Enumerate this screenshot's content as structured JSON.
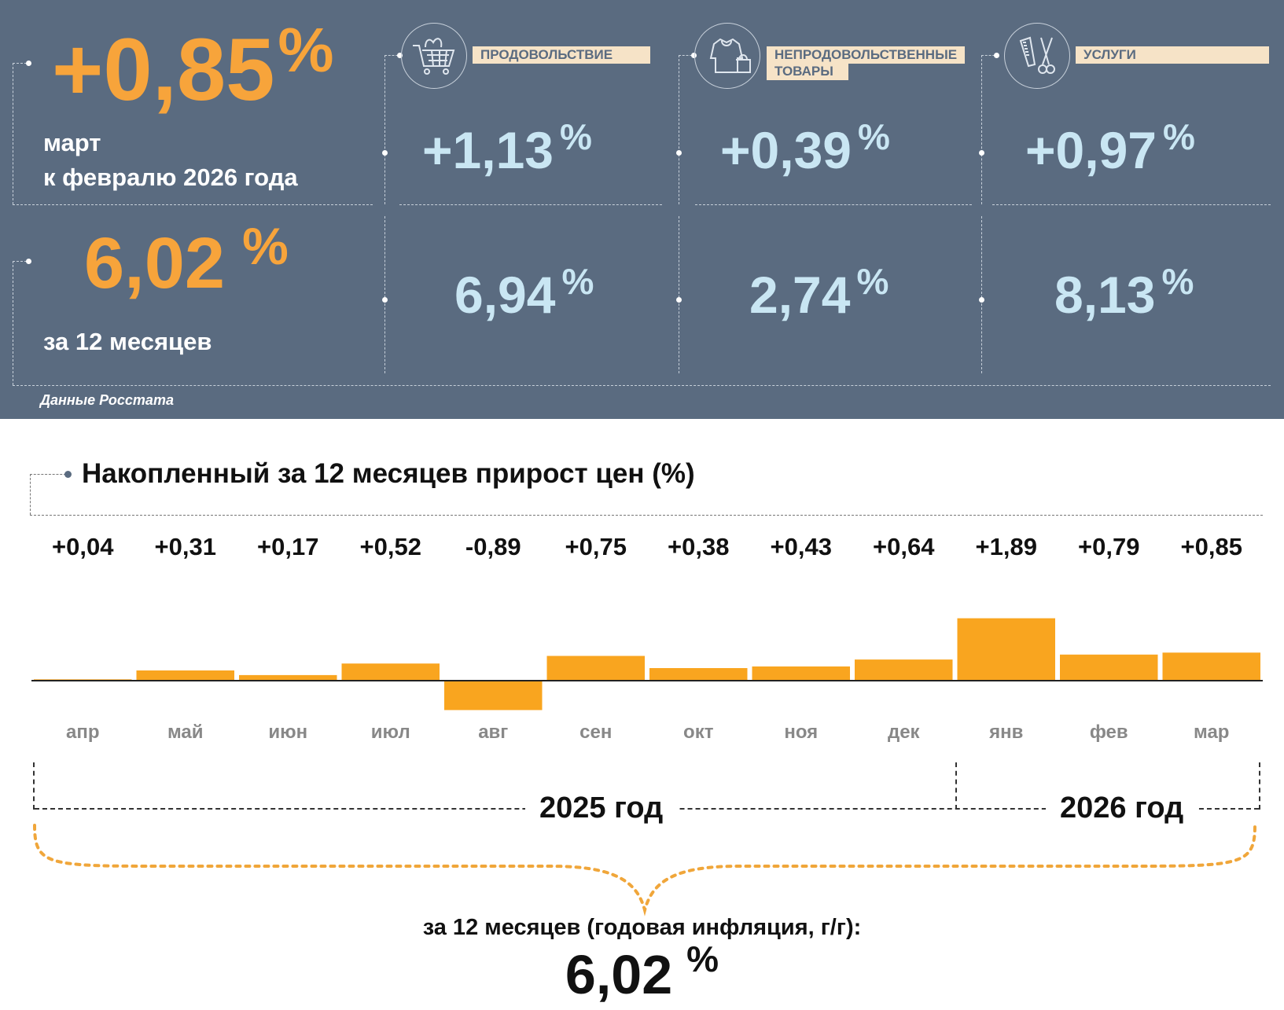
{
  "header": {
    "monthly_value": "+0,85",
    "monthly_unit": "%",
    "monthly_label_1": "март",
    "monthly_label_2": "к февралю 2026 года",
    "annual_value": "6,02",
    "annual_unit": "%",
    "annual_label": "за 12 месяцев",
    "credit": "Данные Росстата"
  },
  "categories": [
    {
      "name": "ПРОДОВОЛЬСТВИЕ",
      "icon": "shopping-cart-icon",
      "monthly": "+1,13",
      "annual": "6,94",
      "unit": "%"
    },
    {
      "name": "НЕПРОДОВОЛЬСТВЕННЫЕ ТОВАРЫ",
      "name_line1": "НЕПРОДОВОЛЬСТВЕННЫЕ",
      "name_line2": "ТОВАРЫ",
      "icon": "clothing-icon",
      "monthly": "+0,39",
      "annual": "2,74",
      "unit": "%"
    },
    {
      "name": "УСЛУГИ",
      "icon": "comb-scissors-icon",
      "monthly": "+0,97",
      "annual": "8,13",
      "unit": "%"
    }
  ],
  "chart_data": {
    "type": "bar",
    "title": "Накопленный за 12 месяцев прирост цен (%)",
    "categories": [
      "апр",
      "май",
      "июн",
      "июл",
      "авг",
      "сен",
      "окт",
      "ноя",
      "дек",
      "янв",
      "фев",
      "мар"
    ],
    "values": [
      0.04,
      0.31,
      0.17,
      0.52,
      -0.89,
      0.75,
      0.38,
      0.43,
      0.64,
      1.89,
      0.79,
      0.85
    ],
    "data_labels": [
      "+0,04",
      "+0,31",
      "+0,17",
      "+0,52",
      "-0,89",
      "+0,75",
      "+0,38",
      "+0,43",
      "+0,64",
      "+1,89",
      "+0,79",
      "+0,85"
    ],
    "year_labels": [
      "2025 год",
      "2026 год"
    ],
    "annual_caption": "за 12 месяцев (годовая инфляция, г/г):",
    "annual_value": "6,02",
    "annual_unit": "%",
    "grid": false,
    "colors": {
      "bar": "#f9a51f",
      "panel": "#5a6b80",
      "accent": "#f7a43b",
      "value_blue": "#c9e6f3",
      "label_box": "#f6e3c7"
    }
  }
}
